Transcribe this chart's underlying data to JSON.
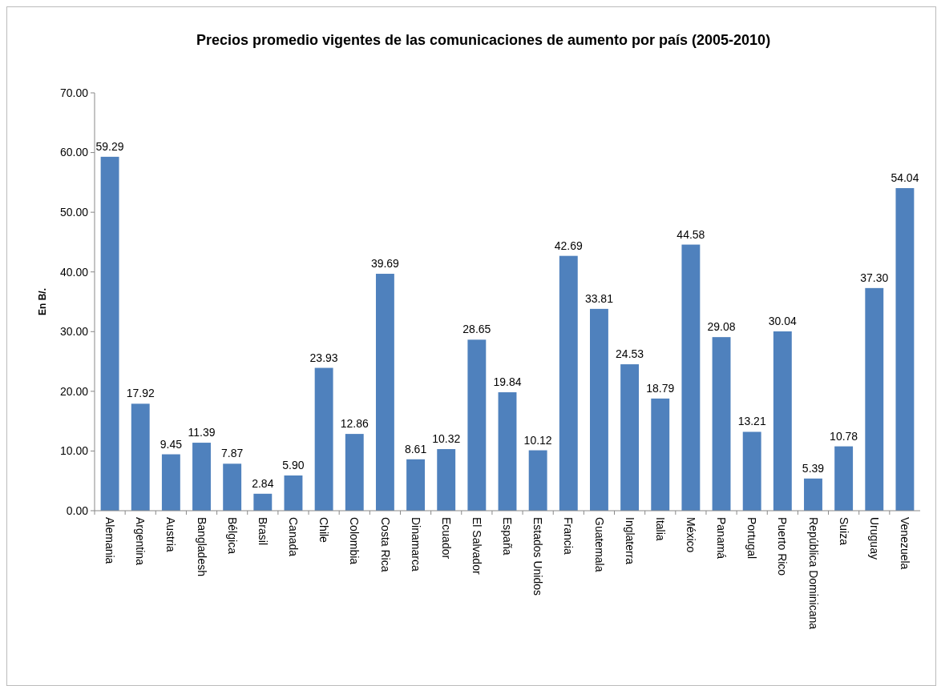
{
  "chart_data": {
    "type": "bar",
    "title": "Precios  promedio vigentes de las comunicaciones de aumento por país (2005-2010)",
    "ylabel": "En B/.",
    "categories": [
      "Alemania",
      "Argentina",
      "Austria",
      "Bangladesh",
      "Bélgica",
      "Brasil",
      "Canada",
      "Chile",
      "Colombia",
      "Costa Rica",
      "Dinamarca",
      "Ecuador",
      "El Salvador",
      "España",
      "Estados Unidos",
      "Francia",
      "Guatemala",
      "Inglaterra",
      "Italia",
      "México",
      "Panamá",
      "Portugal",
      "Puerto Rico",
      "República Dominicana",
      "Suiza",
      "Uruguay",
      "Venezuela"
    ],
    "values": [
      59.29,
      17.92,
      9.45,
      11.39,
      7.87,
      2.84,
      5.9,
      23.93,
      12.86,
      39.69,
      8.61,
      10.32,
      28.65,
      19.84,
      10.12,
      42.69,
      33.81,
      24.53,
      18.79,
      44.58,
      29.08,
      13.21,
      30.04,
      5.39,
      10.78,
      37.3,
      54.04
    ],
    "value_labels": [
      "59.29",
      "17.92",
      "9.45",
      "11.39",
      "7.87",
      "2.84",
      "5.90",
      "23.93",
      "12.86",
      "39.69",
      "8.61",
      "10.32",
      "28.65",
      "19.84",
      "10.12",
      "42.69",
      "33.81",
      "24.53",
      "18.79",
      "44.58",
      "29.08",
      "13.21",
      "30.04",
      "5.39",
      "10.78",
      "37.30",
      "54.04"
    ],
    "color": "#4f81bd",
    "ylim": [
      0,
      70
    ],
    "yticks": [
      {
        "value": 0,
        "label": "0.00"
      },
      {
        "value": 10,
        "label": "10.00"
      },
      {
        "value": 20,
        "label": "20.00"
      },
      {
        "value": 30,
        "label": "30.00"
      },
      {
        "value": 40,
        "label": "40.00"
      },
      {
        "value": 50,
        "label": "50.00"
      },
      {
        "value": 60,
        "label": "60.00"
      },
      {
        "value": 70,
        "label": "70.00"
      }
    ],
    "grid": false
  }
}
